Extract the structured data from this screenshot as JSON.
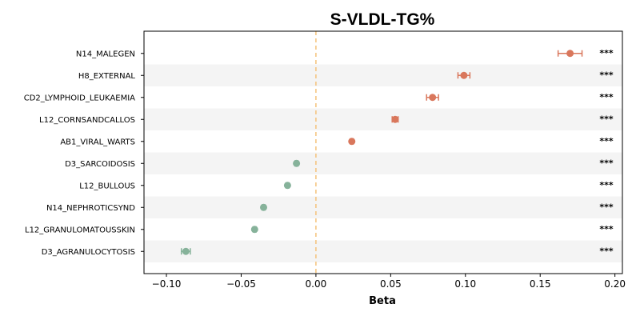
{
  "chart_data": {
    "type": "scatter",
    "title": "S-VLDL-TG%",
    "xlabel": "Beta",
    "xlim": [
      -0.115,
      0.205
    ],
    "xticks": [
      -0.1,
      -0.05,
      0.0,
      0.05,
      0.1,
      0.15,
      0.2
    ],
    "xtick_labels": [
      "−0.10",
      "−0.05",
      "0.00",
      "0.05",
      "0.10",
      "0.15",
      "0.20"
    ],
    "reference_line_x": 0,
    "row_banding": true,
    "colors": {
      "positive": "#d9775c",
      "negative": "#86b29a",
      "reference_line": "#f5c27a",
      "band": "#f4f4f4"
    },
    "rows": [
      {
        "label": "N14_MALEGEN",
        "beta": 0.17,
        "ci_low": 0.162,
        "ci_high": 0.178,
        "significance": "***"
      },
      {
        "label": "H8_EXTERNAL",
        "beta": 0.099,
        "ci_low": 0.095,
        "ci_high": 0.103,
        "significance": "***"
      },
      {
        "label": "CD2_LYMPHOID_LEUKAEMIA",
        "beta": 0.078,
        "ci_low": 0.074,
        "ci_high": 0.082,
        "significance": "***"
      },
      {
        "label": "L12_CORNSANDCALLOS",
        "beta": 0.053,
        "ci_low": 0.051,
        "ci_high": 0.055,
        "significance": "***"
      },
      {
        "label": "AB1_VIRAL_WARTS",
        "beta": 0.024,
        "ci_low": 0.023,
        "ci_high": 0.025,
        "significance": "***"
      },
      {
        "label": "D3_SARCOIDOSIS",
        "beta": -0.013,
        "ci_low": -0.014,
        "ci_high": -0.012,
        "significance": "***"
      },
      {
        "label": "L12_BULLOUS",
        "beta": -0.019,
        "ci_low": -0.02,
        "ci_high": -0.018,
        "significance": "***"
      },
      {
        "label": "N14_NEPHROTICSYND",
        "beta": -0.035,
        "ci_low": -0.036,
        "ci_high": -0.034,
        "significance": "***"
      },
      {
        "label": "L12_GRANULOMATOUSSKIN",
        "beta": -0.041,
        "ci_low": -0.042,
        "ci_high": -0.04,
        "significance": "***"
      },
      {
        "label": "D3_AGRANULOCYTOSIS",
        "beta": -0.087,
        "ci_low": -0.09,
        "ci_high": -0.084,
        "significance": "***"
      }
    ]
  }
}
